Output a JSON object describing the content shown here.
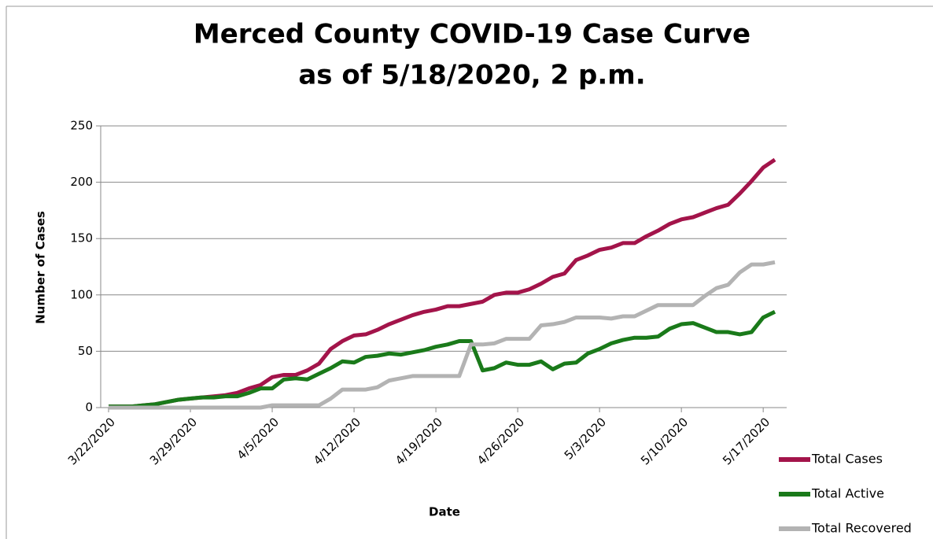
{
  "chart_data": {
    "type": "line",
    "title": "Merced County COVID-19 Case Curve",
    "subtitle": "as of 5/18/2020, 2 p.m.",
    "x_label": "Date",
    "y_label": "Number of Cases",
    "categories": [
      "3/22/2020",
      null,
      null,
      null,
      null,
      null,
      null,
      "3/29/2020",
      null,
      null,
      null,
      null,
      null,
      null,
      "4/5/2020",
      null,
      null,
      null,
      null,
      null,
      null,
      "4/12/2020",
      null,
      null,
      null,
      null,
      null,
      null,
      "4/19/2020",
      null,
      null,
      null,
      null,
      null,
      null,
      "4/26/2020",
      null,
      null,
      null,
      null,
      null,
      null,
      "5/3/2020",
      null,
      null,
      null,
      null,
      null,
      null,
      "5/10/2020",
      null,
      null,
      null,
      null,
      null,
      null,
      "5/17/2020",
      null
    ],
    "series": [
      {
        "name": "Total Cases",
        "color": "#a3144a",
        "values": [
          1,
          1,
          1,
          2,
          3,
          5,
          7,
          8,
          9,
          10,
          11,
          13,
          17,
          20,
          27,
          29,
          29,
          33,
          39,
          52,
          59,
          64,
          65,
          69,
          74,
          78,
          82,
          85,
          87,
          90,
          90,
          92,
          94,
          100,
          102,
          102,
          105,
          110,
          116,
          119,
          131,
          135,
          140,
          142,
          146,
          146,
          152,
          157,
          163,
          167,
          169,
          173,
          177,
          180,
          190,
          201,
          213,
          220
        ]
      },
      {
        "name": "Total Active",
        "color": "#1a7a1a",
        "values": [
          1,
          1,
          1,
          2,
          3,
          5,
          7,
          8,
          9,
          9,
          10,
          10,
          13,
          17,
          17,
          25,
          26,
          25,
          30,
          35,
          41,
          40,
          45,
          46,
          48,
          47,
          49,
          51,
          54,
          56,
          59,
          59,
          33,
          35,
          40,
          38,
          38,
          41,
          34,
          39,
          40,
          48,
          52,
          57,
          60,
          62,
          62,
          63,
          70,
          74,
          75,
          71,
          67,
          67,
          65,
          67,
          80,
          85
        ]
      },
      {
        "name": "Total Recovered",
        "color": "#b3b3b3",
        "values": [
          0,
          0,
          0,
          0,
          0,
          0,
          0,
          0,
          0,
          0,
          0,
          0,
          0,
          0,
          2,
          2,
          2,
          2,
          2,
          8,
          16,
          16,
          16,
          18,
          24,
          26,
          28,
          28,
          28,
          28,
          28,
          56,
          56,
          57,
          61,
          61,
          61,
          73,
          74,
          76,
          80,
          80,
          80,
          79,
          81,
          81,
          86,
          91,
          91,
          91,
          91,
          99,
          106,
          109,
          120,
          127,
          127,
          129
        ]
      }
    ],
    "ylim": [
      0,
      250
    ],
    "yticks": [
      0,
      50,
      100,
      150,
      200,
      250
    ],
    "grid": true,
    "legend": "right"
  }
}
